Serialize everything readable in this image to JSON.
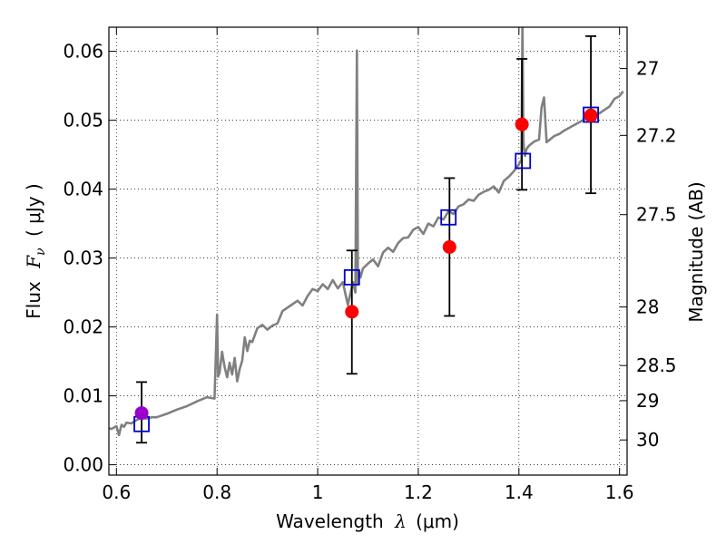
{
  "chart_data": {
    "type": "line",
    "xlabel": "Wavelength",
    "xlabel_symbol": "λ",
    "xlabel_unit": "(μm)",
    "ylabel_prefix": "Flux",
    "ylabel_symbol": "F",
    "ylabel_subscript": "ν",
    "ylabel_unit": "( μJy )",
    "y2label": "Magnitude (AB)",
    "xlim": [
      0.585,
      1.615
    ],
    "ylim": [
      -0.0015,
      0.0635
    ],
    "grid": true,
    "x_ticks": [
      0.6,
      0.8,
      1.0,
      1.2,
      1.4,
      1.6
    ],
    "x_tick_labels": [
      "0.6",
      "0.8",
      "1",
      "1.2",
      "1.4",
      "1.6"
    ],
    "y_ticks": [
      0.0,
      0.01,
      0.02,
      0.03,
      0.04,
      0.05,
      0.06
    ],
    "y_tick_labels": [
      "0.00",
      "0.01",
      "0.02",
      "0.03",
      "0.04",
      "0.05",
      "0.06"
    ],
    "mag_ticks": [
      {
        "label": "27",
        "value": 0.0575
      },
      {
        "label": "27.2",
        "value": 0.0478
      },
      {
        "label": "27.5",
        "value": 0.0363
      },
      {
        "label": "28",
        "value": 0.0229
      },
      {
        "label": "28.5",
        "value": 0.0144
      },
      {
        "label": "29",
        "value": 0.0093
      },
      {
        "label": "30",
        "value": 0.0036
      }
    ],
    "series": [
      {
        "type": "line",
        "color": "#808080",
        "x": [
          0.585,
          0.59,
          0.6,
          0.605,
          0.61,
          0.615,
          0.62,
          0.63,
          0.64,
          0.65,
          0.66,
          0.67,
          0.68,
          0.7,
          0.72,
          0.74,
          0.76,
          0.78,
          0.795,
          0.8,
          0.802,
          0.805,
          0.81,
          0.815,
          0.82,
          0.825,
          0.83,
          0.835,
          0.84,
          0.845,
          0.85,
          0.855,
          0.86,
          0.865,
          0.87,
          0.88,
          0.89,
          0.9,
          0.91,
          0.92,
          0.93,
          0.94,
          0.95,
          0.96,
          0.97,
          0.98,
          0.99,
          1.0,
          1.01,
          1.02,
          1.03,
          1.04,
          1.05,
          1.06,
          1.07,
          1.075,
          1.078,
          1.08,
          1.082,
          1.085,
          1.09,
          1.1,
          1.11,
          1.12,
          1.13,
          1.14,
          1.15,
          1.16,
          1.17,
          1.18,
          1.19,
          1.2,
          1.21,
          1.22,
          1.23,
          1.24,
          1.25,
          1.26,
          1.27,
          1.28,
          1.29,
          1.3,
          1.31,
          1.32,
          1.33,
          1.34,
          1.35,
          1.36,
          1.37,
          1.38,
          1.39,
          1.4,
          1.405,
          1.407,
          1.409,
          1.41,
          1.412,
          1.415,
          1.42,
          1.43,
          1.44,
          1.445,
          1.45,
          1.455,
          1.46,
          1.47,
          1.48,
          1.49,
          1.5,
          1.51,
          1.52,
          1.53,
          1.54,
          1.55,
          1.56,
          1.57,
          1.58,
          1.59,
          1.6,
          1.607
        ],
        "y": [
          0.0053,
          0.0052,
          0.0056,
          0.0043,
          0.0058,
          0.0055,
          0.0061,
          0.006,
          0.0065,
          0.0068,
          0.0067,
          0.0069,
          0.0069,
          0.0074,
          0.008,
          0.0085,
          0.0092,
          0.0098,
          0.0096,
          0.0218,
          0.0128,
          0.0134,
          0.0164,
          0.0142,
          0.0127,
          0.0148,
          0.0131,
          0.0155,
          0.0121,
          0.0139,
          0.0151,
          0.0185,
          0.0165,
          0.018,
          0.0178,
          0.0198,
          0.0203,
          0.0196,
          0.0202,
          0.0205,
          0.0223,
          0.0228,
          0.0233,
          0.0238,
          0.0231,
          0.0245,
          0.0255,
          0.0252,
          0.0262,
          0.0255,
          0.0268,
          0.0256,
          0.0265,
          0.0232,
          0.0265,
          0.025,
          0.0601,
          0.0262,
          0.0281,
          0.0272,
          0.0285,
          0.0292,
          0.0298,
          0.0288,
          0.0308,
          0.0315,
          0.0309,
          0.0322,
          0.0329,
          0.033,
          0.0341,
          0.0345,
          0.0335,
          0.035,
          0.0346,
          0.0359,
          0.0356,
          0.0368,
          0.0364,
          0.0375,
          0.0378,
          0.0385,
          0.0383,
          0.0392,
          0.0396,
          0.0399,
          0.0404,
          0.0395,
          0.0412,
          0.0418,
          0.0426,
          0.0436,
          0.0443,
          0.0642,
          0.0472,
          0.0458,
          0.0448,
          0.0458,
          0.0463,
          0.0469,
          0.0472,
          0.0519,
          0.0533,
          0.0468,
          0.0471,
          0.0477,
          0.048,
          0.0485,
          0.0489,
          0.0493,
          0.0497,
          0.0501,
          0.0504,
          0.0508,
          0.051,
          0.0515,
          0.052,
          0.0531,
          0.0535,
          0.0542
        ]
      },
      {
        "type": "errorbar-circle",
        "color": "#ff0000",
        "points": [
          {
            "x": 1.068,
            "y": 0.0222,
            "ylo": 0.0132,
            "yhi": 0.0311
          },
          {
            "x": 1.262,
            "y": 0.0316,
            "ylo": 0.0216,
            "yhi": 0.0416
          },
          {
            "x": 1.406,
            "y": 0.0494,
            "ylo": 0.0399,
            "yhi": 0.0589
          },
          {
            "x": 1.543,
            "y": 0.0507,
            "ylo": 0.0394,
            "yhi": 0.0622
          }
        ]
      },
      {
        "type": "errorbar-circle",
        "color": "#9900cc",
        "points": [
          {
            "x": 0.65,
            "y": 0.0075,
            "ylo": 0.0032,
            "yhi": 0.012
          }
        ]
      },
      {
        "type": "square",
        "color": "#0000cc",
        "points": [
          {
            "x": 0.65,
            "y": 0.0059
          },
          {
            "x": 1.068,
            "y": 0.0272
          },
          {
            "x": 1.26,
            "y": 0.0359
          },
          {
            "x": 1.408,
            "y": 0.0441
          },
          {
            "x": 1.543,
            "y": 0.0508
          }
        ]
      }
    ]
  }
}
